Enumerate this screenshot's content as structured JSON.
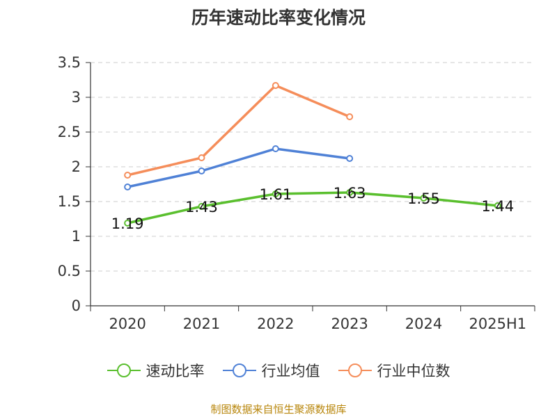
{
  "colors": {
    "quick_ratio": "#5abf2e",
    "industry_mean": "#4f81d6",
    "industry_median": "#f58d5a",
    "grid": "#cccccc",
    "axis": "#333333",
    "source": "#b8860b"
  },
  "chart_data": {
    "type": "line",
    "title": "历年速动比率变化情况",
    "categories": [
      "2020",
      "2021",
      "2022",
      "2023",
      "2024",
      "2025H1"
    ],
    "ylim": [
      0,
      3.5
    ],
    "yticks": [
      "0",
      "0.5",
      "1",
      "1.5",
      "2",
      "2.5",
      "3",
      "3.5"
    ],
    "grid": true,
    "legend_position": "bottom",
    "series": [
      {
        "name": "速动比率",
        "values": [
          1.19,
          1.43,
          1.61,
          1.63,
          1.55,
          1.44
        ],
        "labels": [
          "1.19",
          "1.43",
          "1.61",
          "1.63",
          "1.55",
          "1.44"
        ]
      },
      {
        "name": "行业均值",
        "values": [
          1.71,
          1.94,
          2.26,
          2.12,
          null,
          null
        ]
      },
      {
        "name": "行业中位数",
        "values": [
          1.88,
          2.13,
          3.17,
          2.72,
          null,
          null
        ]
      }
    ]
  },
  "source": "制图数据来自恒生聚源数据库"
}
